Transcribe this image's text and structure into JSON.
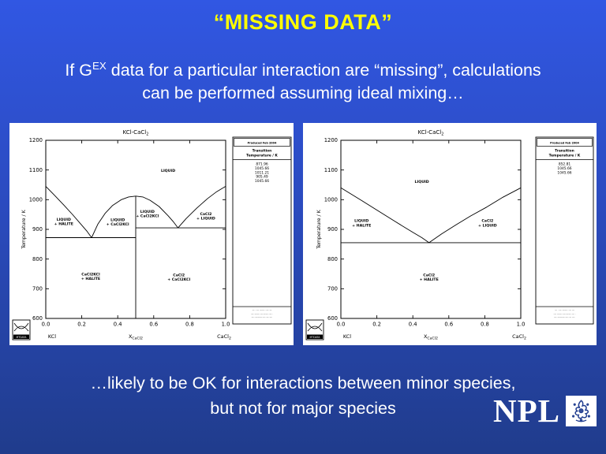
{
  "slide": {
    "title": "“MISSING DATA”",
    "body": {
      "line1_prefix": "If G",
      "line1_sup": "EX",
      "line1_rest": " data for a particular interaction are “missing”, calculations",
      "line2": "can be performed assuming ideal mixing…"
    },
    "footer": {
      "line1": "…likely to be OK for interactions between minor species,",
      "line2": "but not for major species"
    },
    "npl": {
      "wordmark": "NPL"
    },
    "colors": {
      "background_top": "#3157E3",
      "background_bottom": "#203C8C",
      "title_text": "#FFFF00",
      "body_text": "#FFFFFF",
      "chart_ink": "#000000",
      "crest_blue": "#1F3C8F"
    }
  },
  "chart_data": [
    {
      "type": "line",
      "name": "kcl-cacl2-assessed",
      "title": {
        "base": "KCl-CaCl",
        "sub": "2"
      },
      "ylabel": "Temperature / K",
      "xlabel": {
        "base": "X",
        "sub": "CaCl2"
      },
      "x_left_label": {
        "base": "KCl",
        "sub": ""
      },
      "x_right_label": {
        "base": "CaCl",
        "sub": "2"
      },
      "xlim": [
        0,
        1
      ],
      "ylim": [
        600,
        1200
      ],
      "xticks": [
        0.0,
        0.2,
        0.4,
        0.6,
        0.8,
        1.0
      ],
      "yticks": [
        600,
        700,
        800,
        900,
        1000,
        1100,
        1200
      ],
      "grid": false,
      "legend_position": "right",
      "series": [
        {
          "name": "liquidus-halite",
          "points": [
            [
              0,
              1045
            ],
            [
              0.05,
              1014
            ],
            [
              0.1,
              982
            ],
            [
              0.15,
              949
            ],
            [
              0.2,
              914
            ],
            [
              0.23,
              893
            ],
            [
              0.255,
              872
            ]
          ]
        },
        {
          "name": "liquidus-cacl2kcl-dome",
          "points": [
            [
              0.255,
              872
            ],
            [
              0.29,
              918
            ],
            [
              0.33,
              954
            ],
            [
              0.37,
              980
            ],
            [
              0.42,
              1000
            ],
            [
              0.46,
              1009
            ],
            [
              0.5,
              1012
            ],
            [
              0.54,
              1009
            ],
            [
              0.58,
              998
            ],
            [
              0.63,
              977
            ],
            [
              0.68,
              946
            ],
            [
              0.71,
              925
            ],
            [
              0.735,
              905
            ]
          ]
        },
        {
          "name": "liquidus-cacl2",
          "points": [
            [
              0.735,
              905
            ],
            [
              0.78,
              936
            ],
            [
              0.84,
              972
            ],
            [
              0.9,
              1004
            ],
            [
              0.95,
              1027
            ],
            [
              1.0,
              1045
            ]
          ]
        },
        {
          "name": "eutectic-line-1",
          "points": [
            [
              0,
              872
            ],
            [
              0.5,
              872
            ]
          ]
        },
        {
          "name": "eutectic-line-2",
          "points": [
            [
              0.5,
              905
            ],
            [
              1.0,
              905
            ]
          ]
        },
        {
          "name": "compound-boundary",
          "points": [
            [
              0.5,
              600
            ],
            [
              0.5,
              1012
            ]
          ]
        }
      ],
      "region_labels": [
        {
          "x": 0.68,
          "t": 1098,
          "lines": [
            "LIQUID"
          ]
        },
        {
          "x": 0.1,
          "t": 927,
          "lines": [
            "LIQUID",
            "+ HALITE"
          ]
        },
        {
          "x": 0.4,
          "t": 925,
          "lines": [
            "LIQUID",
            "+ CaCl2KCl"
          ]
        },
        {
          "x": 0.565,
          "t": 953,
          "lines": [
            "LIQUID",
            "+ CaCl2KCl"
          ]
        },
        {
          "x": 0.89,
          "t": 945,
          "lines": [
            "CaCl2",
            "+ LIQUID"
          ]
        },
        {
          "x": 0.25,
          "t": 742,
          "lines": [
            "CaCl2KCl",
            "+ HALITE"
          ]
        },
        {
          "x": 0.74,
          "t": 740,
          "lines": [
            "CaCl2",
            "+ CaCl2KCl"
          ]
        }
      ],
      "legend": {
        "stamp": "Produced Feb 2004",
        "header": [
          "Transition",
          "Temperature / K"
        ],
        "values": [
          "871.96",
          "1045.66",
          "1011.21",
          "905.49",
          "1045.66"
        ],
        "footer": [
          "— ··— ——···— —",
          "·— ——··—·——··— ·",
          "—··———·—··— —·"
        ]
      },
      "logo_label": "MTDATA"
    },
    {
      "type": "line",
      "name": "kcl-cacl2-ideal-mixing",
      "title": {
        "base": "KCl-CaCl",
        "sub": "2"
      },
      "ylabel": "Temperature / K",
      "xlabel": {
        "base": "X",
        "sub": "CaCl2"
      },
      "x_left_label": {
        "base": "KCl",
        "sub": ""
      },
      "x_right_label": {
        "base": "CaCl",
        "sub": "2"
      },
      "xlim": [
        0,
        1
      ],
      "ylim": [
        600,
        1200
      ],
      "xticks": [
        0.0,
        0.2,
        0.4,
        0.6,
        0.8,
        1.0
      ],
      "yticks": [
        600,
        700,
        800,
        900,
        1000,
        1100,
        1200
      ],
      "grid": false,
      "legend_position": "right",
      "series": [
        {
          "name": "liquidus-halite",
          "points": [
            [
              0,
              1040
            ],
            [
              0.1,
              1003
            ],
            [
              0.2,
              965
            ],
            [
              0.3,
              927
            ],
            [
              0.4,
              890
            ],
            [
              0.45,
              872
            ],
            [
              0.49,
              855
            ]
          ]
        },
        {
          "name": "liquidus-cacl2",
          "points": [
            [
              0.49,
              855
            ],
            [
              0.56,
              885
            ],
            [
              0.64,
              915
            ],
            [
              0.72,
              945
            ],
            [
              0.81,
              975
            ],
            [
              0.9,
              1008
            ],
            [
              1.0,
              1040
            ]
          ]
        },
        {
          "name": "eutectic-line",
          "points": [
            [
              0,
              855
            ],
            [
              1.0,
              855
            ]
          ]
        }
      ],
      "region_labels": [
        {
          "x": 0.45,
          "t": 1062,
          "lines": [
            "LIQUID"
          ]
        },
        {
          "x": 0.115,
          "t": 922,
          "lines": [
            "LIQUID",
            "+ HALITE"
          ]
        },
        {
          "x": 0.815,
          "t": 922,
          "lines": [
            "CaCl2",
            "+ LIQUID"
          ]
        },
        {
          "x": 0.49,
          "t": 740,
          "lines": [
            "CaCl2",
            "+ HALITE"
          ]
        }
      ],
      "legend": {
        "stamp": "Produced Feb 2004",
        "header": [
          "Transition",
          "Temperature / K"
        ],
        "values": [
          "852.81",
          "1045.66",
          "1045.66"
        ],
        "footer": [
          "— ··— ——···— —",
          "·— ——··—·——··— ·",
          "—··———·—··— —·"
        ]
      },
      "logo_label": "MTDATA"
    }
  ]
}
